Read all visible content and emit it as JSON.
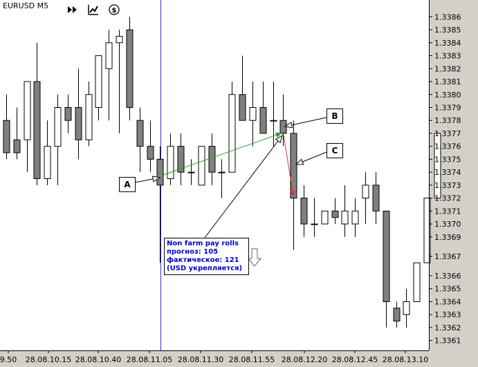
{
  "symbol": "EURUSD M5",
  "toolbar": [
    "fast-forward-icon",
    "chart-trend-icon",
    "dollar-icon"
  ],
  "annotations": {
    "A": "A",
    "B": "B",
    "C": "C",
    "note_lines": [
      "Non farm pay rolls",
      "прогноз: 105",
      "фактическое: 121",
      "(USD укрепляется)"
    ]
  },
  "colors": {
    "background": "#d4d0c8",
    "plot_bg": "#ffffff",
    "bear_body": "#808080",
    "bull_body": "#ffffff",
    "vline": "#3030d0",
    "green_arrow": "#2a9d2a",
    "red_arrow": "#e03030"
  },
  "chart_data": {
    "type": "candlestick",
    "title": "EURUSD M5",
    "y_ticks": [
      "1.3386",
      "1.3385",
      "1.3384",
      "1.3383",
      "1.3382",
      "1.3381",
      "1.3380",
      "1.3379",
      "1.3378",
      "1.3377",
      "1.3376",
      "1.3375",
      "1.3374",
      "1.3373",
      "1.3372",
      "1.3371",
      "1.3370",
      "1.3369",
      "1.3367",
      "1.3366",
      "1.3365",
      "1.3364",
      "1.3363",
      "1.3362",
      "1.3361"
    ],
    "y_range": [
      1.33605,
      1.33865
    ],
    "x_ticks": [
      "9.50",
      "28.08.10.15",
      "28.08.10.40",
      "28.08.11.05",
      "28.08.11.30",
      "28.08.11.55",
      "28.08.12.20",
      "28.08.12.45",
      "28.08.13.10"
    ],
    "candles": [
      {
        "o": 1.3378,
        "h": 1.338,
        "l": 1.3375,
        "c": 1.33755
      },
      {
        "o": 1.33765,
        "h": 1.3379,
        "l": 1.3375,
        "c": 1.33755
      },
      {
        "o": 1.33765,
        "h": 1.3381,
        "l": 1.3374,
        "c": 1.3381
      },
      {
        "o": 1.3381,
        "h": 1.3384,
        "l": 1.3373,
        "c": 1.33735
      },
      {
        "o": 1.33735,
        "h": 1.3378,
        "l": 1.3373,
        "c": 1.3376
      },
      {
        "o": 1.3376,
        "h": 1.338,
        "l": 1.3373,
        "c": 1.3379
      },
      {
        "o": 1.3379,
        "h": 1.338,
        "l": 1.3377,
        "c": 1.3378
      },
      {
        "o": 1.3379,
        "h": 1.3382,
        "l": 1.3375,
        "c": 1.33765
      },
      {
        "o": 1.33765,
        "h": 1.3381,
        "l": 1.3376,
        "c": 1.338
      },
      {
        "o": 1.3379,
        "h": 1.3383,
        "l": 1.3378,
        "c": 1.3383
      },
      {
        "o": 1.3382,
        "h": 1.3385,
        "l": 1.3378,
        "c": 1.3384
      },
      {
        "o": 1.3384,
        "h": 1.3385,
        "l": 1.3377,
        "c": 1.33845
      },
      {
        "o": 1.3385,
        "h": 1.3386,
        "l": 1.3378,
        "c": 1.3379
      },
      {
        "o": 1.3378,
        "h": 1.3379,
        "l": 1.3374,
        "c": 1.3376
      },
      {
        "o": 1.3376,
        "h": 1.3378,
        "l": 1.3374,
        "c": 1.3375
      },
      {
        "o": 1.3375,
        "h": 1.3376,
        "l": 1.3367,
        "c": 1.3373
      },
      {
        "o": 1.33735,
        "h": 1.3377,
        "l": 1.3373,
        "c": 1.3376
      },
      {
        "o": 1.3376,
        "h": 1.3377,
        "l": 1.3373,
        "c": 1.3374
      },
      {
        "o": 1.3374,
        "h": 1.3375,
        "l": 1.3373,
        "c": 1.3374
      },
      {
        "o": 1.3373,
        "h": 1.3376,
        "l": 1.3373,
        "c": 1.3376
      },
      {
        "o": 1.3376,
        "h": 1.3377,
        "l": 1.3373,
        "c": 1.3374
      },
      {
        "o": 1.3374,
        "h": 1.3375,
        "l": 1.3372,
        "c": 1.3374
      },
      {
        "o": 1.3374,
        "h": 1.3381,
        "l": 1.3374,
        "c": 1.338
      },
      {
        "o": 1.338,
        "h": 1.3383,
        "l": 1.3378,
        "c": 1.3378
      },
      {
        "o": 1.3378,
        "h": 1.3381,
        "l": 1.3376,
        "c": 1.3379
      },
      {
        "o": 1.3379,
        "h": 1.3381,
        "l": 1.3377,
        "c": 1.3377
      },
      {
        "o": 1.3378,
        "h": 1.3381,
        "l": 1.3376,
        "c": 1.3378
      },
      {
        "o": 1.3378,
        "h": 1.338,
        "l": 1.3376,
        "c": 1.3377
      },
      {
        "o": 1.3377,
        "h": 1.3378,
        "l": 1.3368,
        "c": 1.3372
      },
      {
        "o": 1.3372,
        "h": 1.3373,
        "l": 1.3369,
        "c": 1.337
      },
      {
        "o": 1.337,
        "h": 1.3372,
        "l": 1.3369,
        "c": 1.337
      },
      {
        "o": 1.337,
        "h": 1.3371,
        "l": 1.337,
        "c": 1.3371
      },
      {
        "o": 1.3371,
        "h": 1.3372,
        "l": 1.337,
        "c": 1.33705
      },
      {
        "o": 1.337,
        "h": 1.3373,
        "l": 1.3369,
        "c": 1.3371
      },
      {
        "o": 1.337,
        "h": 1.3372,
        "l": 1.3369,
        "c": 1.3371
      },
      {
        "o": 1.3372,
        "h": 1.3374,
        "l": 1.337,
        "c": 1.3373
      },
      {
        "o": 1.3373,
        "h": 1.3374,
        "l": 1.337,
        "c": 1.3371
      },
      {
        "o": 1.3371,
        "h": 1.3371,
        "l": 1.3362,
        "c": 1.3364
      },
      {
        "o": 1.33635,
        "h": 1.3364,
        "l": 1.3362,
        "c": 1.33625
      },
      {
        "o": 1.3363,
        "h": 1.3365,
        "l": 1.3362,
        "c": 1.3364
      },
      {
        "o": 1.3364,
        "h": 1.3367,
        "l": 1.3364,
        "c": 1.3367
      },
      {
        "o": 1.3367,
        "h": 1.3372,
        "l": 1.3367,
        "c": 1.3372
      },
      {
        "o": 1.3372,
        "h": 1.3377,
        "l": 1.3372,
        "c": 1.3377
      }
    ]
  }
}
